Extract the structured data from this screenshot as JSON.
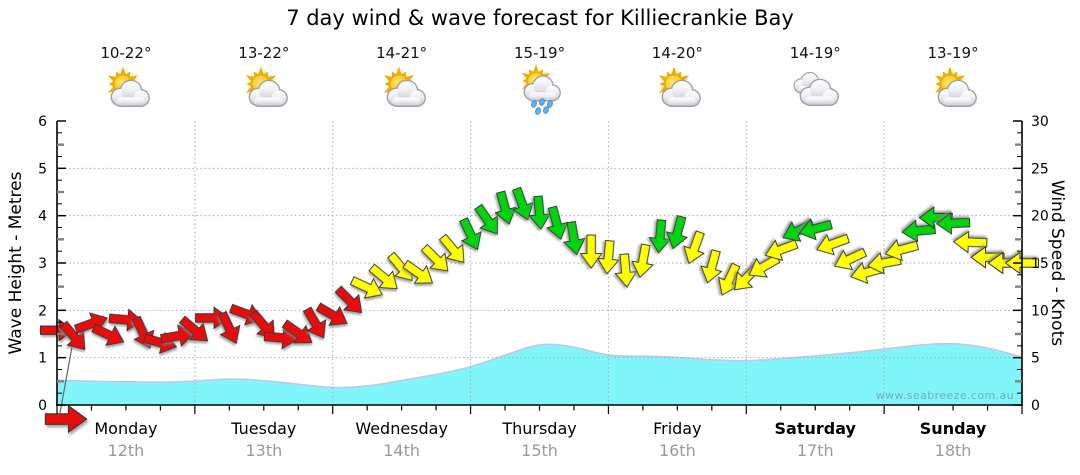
{
  "title": "7 day wind & wave forecast for Killiecrankie Bay",
  "watermark": "www.seabreeze.com.au",
  "axes": {
    "left_label": "Wave Height - Metres",
    "right_label": "Wind Speed - Knots",
    "left_ticks": [
      0,
      1,
      2,
      3,
      4,
      5,
      6
    ],
    "right_ticks": [
      0,
      5,
      10,
      15,
      20,
      25,
      30
    ],
    "left_range": [
      0,
      6
    ],
    "right_range": [
      0,
      30
    ]
  },
  "days": [
    {
      "name": "Monday",
      "date": "12th",
      "temp": "10-22°",
      "icon": "partly-cloudy",
      "bold": false
    },
    {
      "name": "Tuesday",
      "date": "13th",
      "temp": "13-22°",
      "icon": "partly-cloudy",
      "bold": false
    },
    {
      "name": "Wednesday",
      "date": "14th",
      "temp": "14-21°",
      "icon": "partly-cloudy",
      "bold": false
    },
    {
      "name": "Thursday",
      "date": "15th",
      "temp": "15-19°",
      "icon": "rain",
      "bold": false
    },
    {
      "name": "Friday",
      "date": "16th",
      "temp": "14-20°",
      "icon": "partly-cloudy",
      "bold": false
    },
    {
      "name": "Saturday",
      "date": "17th",
      "temp": "14-19°",
      "icon": "cloudy",
      "bold": true
    },
    {
      "name": "Sunday",
      "date": "18th",
      "temp": "13-19°",
      "icon": "partly-cloudy",
      "bold": true
    }
  ],
  "colors": {
    "wave_fill": "#80F6FA",
    "wave_edge": "#C4C4E4",
    "arrow_red": "#E81010",
    "arrow_yellow": "#FFFF00",
    "arrow_green": "#00D40A",
    "arrow_outline": "#333333",
    "grid": "#AAAAAA",
    "axis": "#000000",
    "date_text": "#9A9A9A",
    "sun": "#F7B500",
    "cloud": "#C9CBD1",
    "raindrop": "#5FB2EE"
  },
  "chart_data": {
    "type": "area",
    "description": "Wave height (cyan area, left axis, metres) plus wind arrows positioned by wind speed (right axis, knots), colour-coded by strength; arrows rotate with wind direction over 7 days",
    "x_axis": "Time, Monday 12th 00:00 to Sunday 18th 24:00",
    "ylim_left_metres": [
      0,
      6
    ],
    "ylim_right_knots": [
      0,
      30
    ],
    "grid": "dotted, horizontal every 1 m / 5 kn, vertical at each day boundary",
    "wave_height_m": {
      "t_start_days": 0,
      "t_step_days": 0.25,
      "values": [
        0.52,
        0.5,
        0.49,
        0.48,
        0.5,
        0.56,
        0.52,
        0.44,
        0.36,
        0.39,
        0.52,
        0.64,
        0.8,
        1.05,
        1.31,
        1.24,
        1.03,
        1.04,
        1.01,
        0.95,
        0.93,
        0.98,
        1.04,
        1.1,
        1.18,
        1.27,
        1.31,
        1.22,
        1.01
      ]
    },
    "wind": {
      "t_start_days": 0,
      "t_step_days": 0.125,
      "speed_knots": [
        7.9,
        7.2,
        8.6,
        7.4,
        9.0,
        7.6,
        6.6,
        7.3,
        7.9,
        9.2,
        8.1,
        9.6,
        8.4,
        7.1,
        7.6,
        8.6,
        9.5,
        11.0,
        12.4,
        13.4,
        14.5,
        13.9,
        15.4,
        16.4,
        18.0,
        19.5,
        20.8,
        21.2,
        20.3,
        19.2,
        17.6,
        16.2,
        15.6,
        14.2,
        15.2,
        17.8,
        18.2,
        16.6,
        14.6,
        13.2,
        13.4,
        14.6,
        16.4,
        18.4,
        18.6,
        17.0,
        15.4,
        14.0,
        15.0,
        16.4,
        18.4,
        19.8,
        19.2,
        17.2,
        15.6,
        15.0,
        15.0
      ],
      "direction_deg_pointing": [
        90,
        140,
        70,
        115,
        95,
        155,
        105,
        80,
        130,
        90,
        155,
        110,
        140,
        95,
        125,
        150,
        120,
        135,
        115,
        130,
        140,
        125,
        135,
        140,
        155,
        145,
        165,
        160,
        175,
        165,
        170,
        180,
        185,
        175,
        190,
        185,
        195,
        200,
        195,
        205,
        225,
        240,
        250,
        245,
        255,
        250,
        245,
        255,
        260,
        255,
        265,
        270,
        268,
        272,
        270,
        270,
        270
      ],
      "color_rule": {
        "red_below_knots": 12,
        "yellow_below_knots": 17.5,
        "green_at_or_above_knots": 17.5
      }
    }
  }
}
